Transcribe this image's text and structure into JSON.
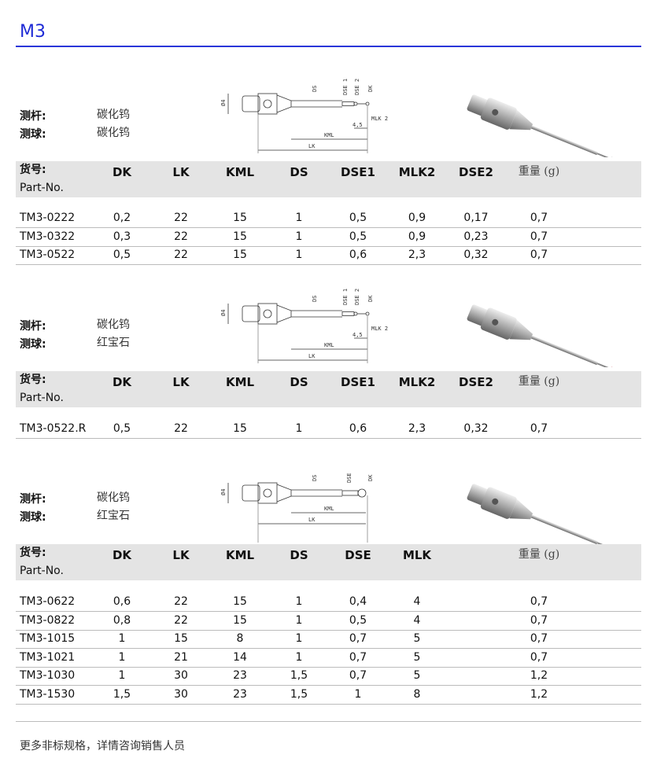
{
  "title": "M3",
  "labels": {
    "stylus": "测杆:",
    "ball": "测球:",
    "part_zh": "货号:",
    "part_en": "Part-No.",
    "weight": "重量 (g)"
  },
  "sections": [
    {
      "stylus_material": "碳化钨",
      "ball_material": "碳化钨",
      "diagram_labels": [
        "Ø4",
        "DS",
        "DSE 1",
        "DSE 2",
        "DK",
        "MLK 2",
        "4,5",
        "KML",
        "LK"
      ],
      "columns": [
        "DK",
        "LK",
        "KML",
        "DS",
        "DSE1",
        "MLK2",
        "DSE2"
      ],
      "rows": [
        [
          "TM3-0222",
          "0,2",
          "22",
          "15",
          "1",
          "0,5",
          "0,9",
          "0,17",
          "0,7"
        ],
        [
          "TM3-0322",
          "0,3",
          "22",
          "15",
          "1",
          "0,5",
          "0,9",
          "0,23",
          "0,7"
        ],
        [
          "TM3-0522",
          "0,5",
          "22",
          "15",
          "1",
          "0,6",
          "2,3",
          "0,32",
          "0,7"
        ]
      ]
    },
    {
      "stylus_material": "碳化钨",
      "ball_material": "红宝石",
      "diagram_labels": [
        "Ø4",
        "DS",
        "DSE 1",
        "DSE 2",
        "DK",
        "MLK 2",
        "4,5",
        "KML",
        "LK"
      ],
      "columns": [
        "DK",
        "LK",
        "KML",
        "DS",
        "DSE1",
        "MLK2",
        "DSE2"
      ],
      "rows": [
        [
          "TM3-0522.R",
          "0,5",
          "22",
          "15",
          "1",
          "0,6",
          "2,3",
          "0,32",
          "0,7"
        ]
      ]
    },
    {
      "stylus_material": "碳化钨",
      "ball_material": "红宝石",
      "diagram_labels": [
        "Ø4",
        "DS",
        "DSE",
        "DK",
        "KML",
        "LK"
      ],
      "columns": [
        "DK",
        "LK",
        "KML",
        "DS",
        "DSE",
        "MLK"
      ],
      "rows": [
        [
          "TM3-0622",
          "0,6",
          "22",
          "15",
          "1",
          "0,4",
          "4",
          "0,7"
        ],
        [
          "TM3-0822",
          "0,8",
          "22",
          "15",
          "1",
          "0,5",
          "4",
          "0,7"
        ],
        [
          "TM3-1015",
          "1",
          "15",
          "8",
          "1",
          "0,7",
          "5",
          "0,7"
        ],
        [
          "TM3-1021",
          "1",
          "21",
          "14",
          "1",
          "0,7",
          "5",
          "0,7"
        ],
        [
          "TM3-1030",
          "1",
          "30",
          "23",
          "1,5",
          "0,7",
          "5",
          "1,2"
        ],
        [
          "TM3-1530",
          "1,5",
          "30",
          "23",
          "1,5",
          "1",
          "8",
          "1,2"
        ]
      ]
    }
  ],
  "ball_colors": [
    "#999999",
    "#b01020",
    "#b01020"
  ],
  "footer": "更多非标规格，详情咨询销售人员"
}
